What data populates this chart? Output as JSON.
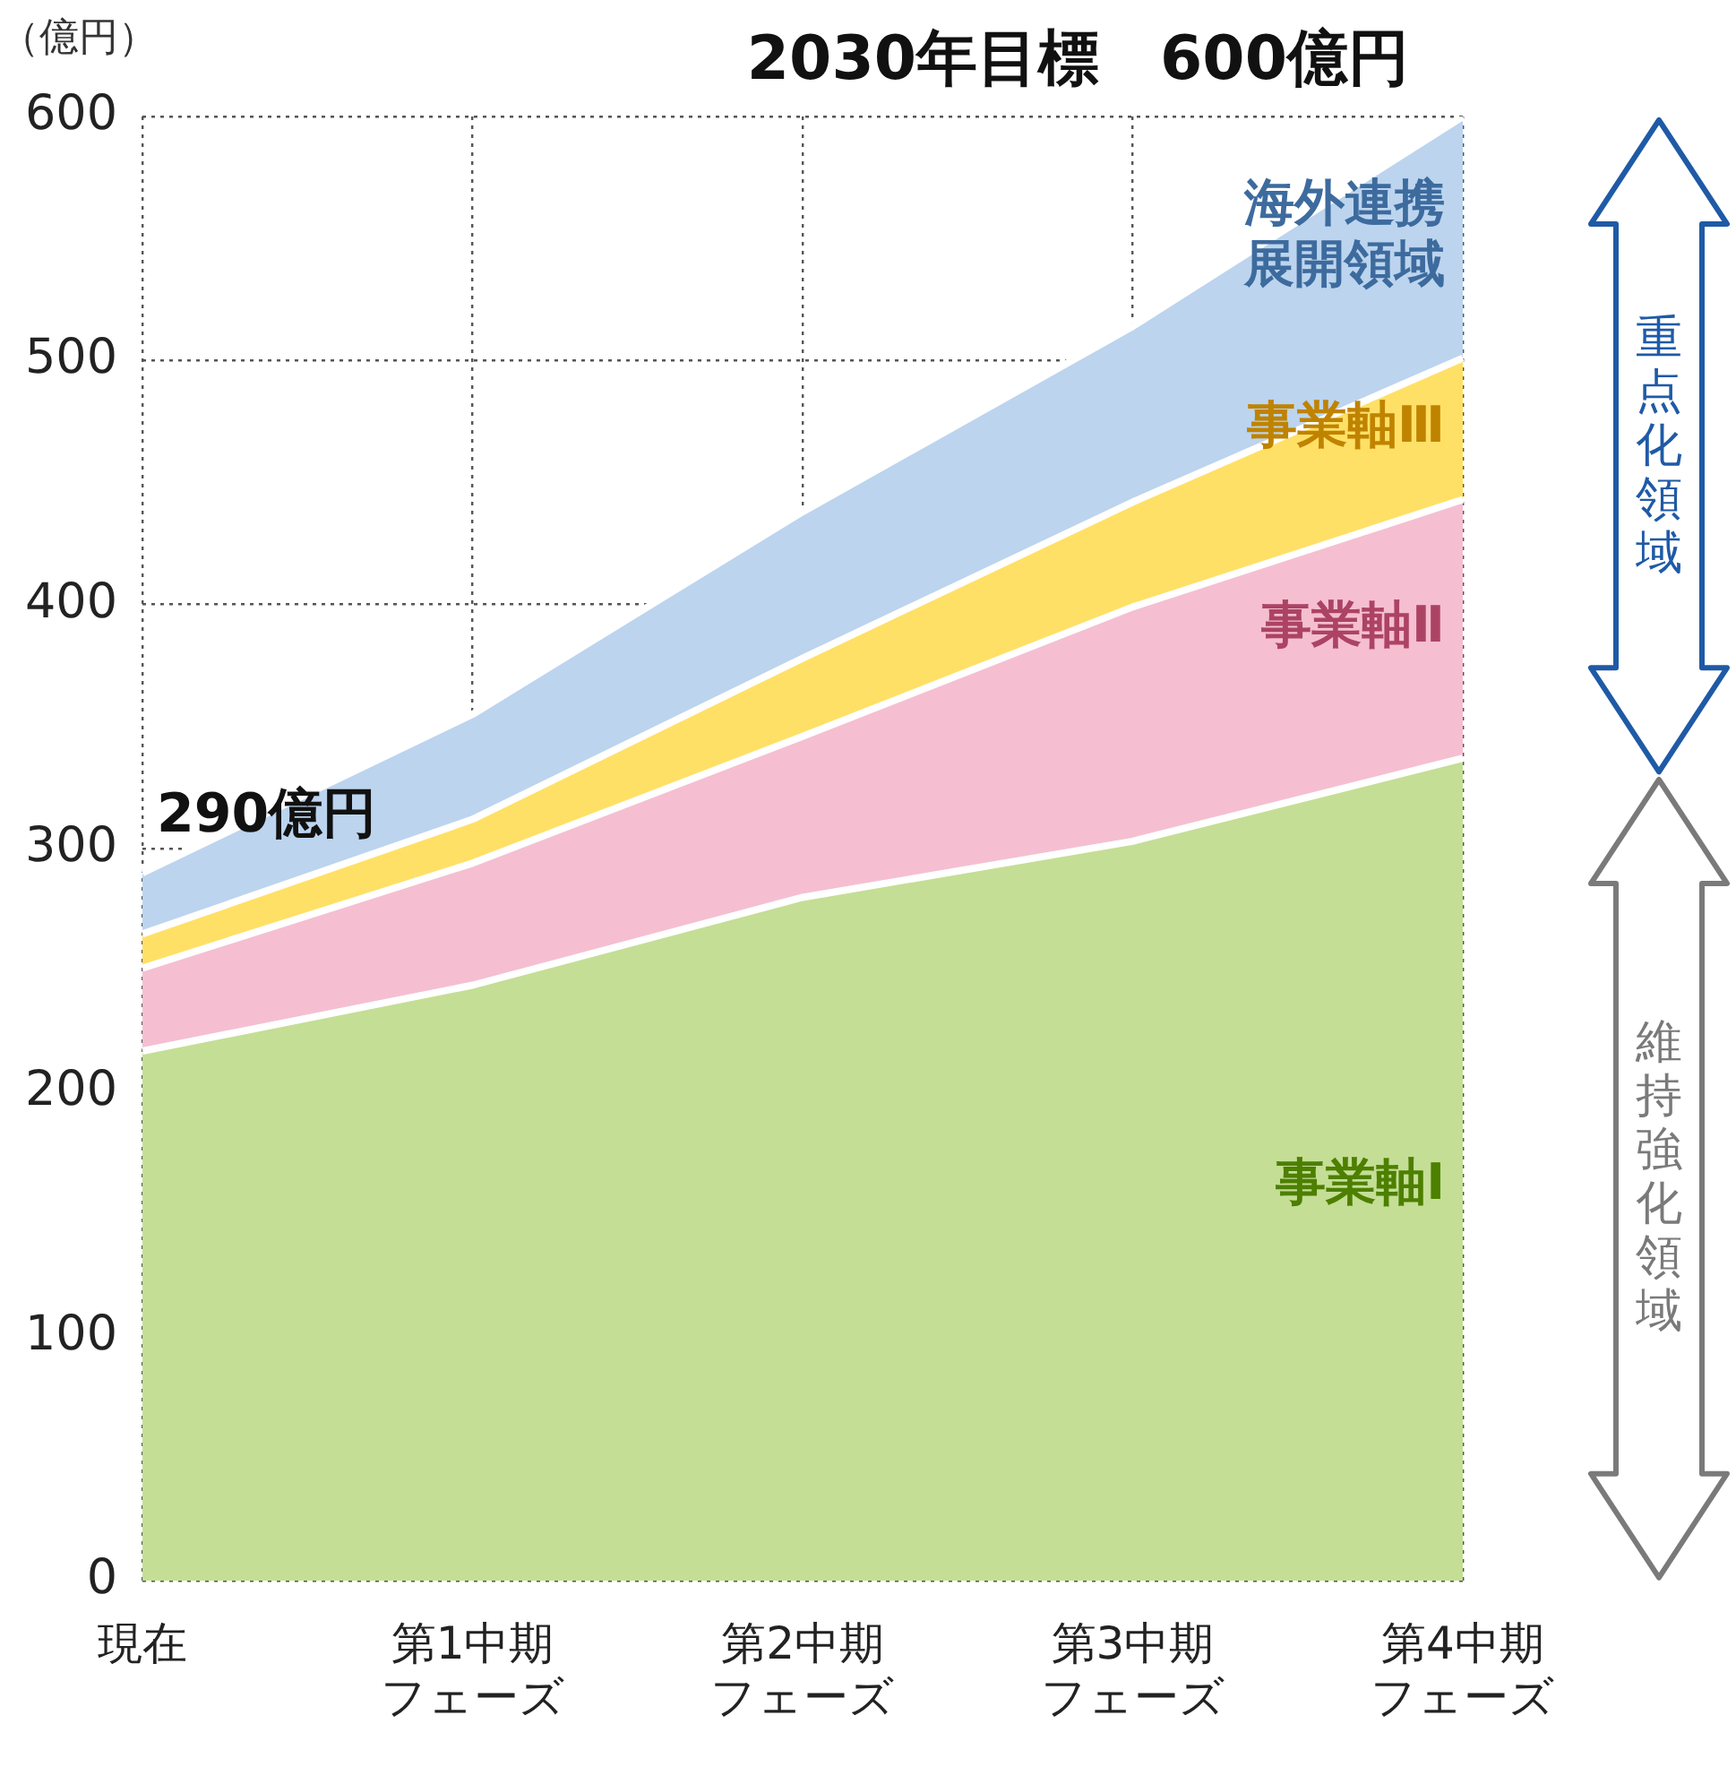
{
  "chart_data": {
    "type": "area",
    "title": "2030年目標　600億円",
    "ylabel": "（億円）",
    "categories": [
      "現在",
      "第1中期フェーズ",
      "第2中期フェーズ",
      "第3中期フェーズ",
      "第4中期フェーズ"
    ],
    "series": [
      {
        "name": "事業軸Ⅰ",
        "color": "#c4de95",
        "values": [
          217,
          244,
          280,
          303,
          337
        ]
      },
      {
        "name": "事業軸Ⅱ",
        "color": "#f5bfd1",
        "values": [
          34,
          50,
          66,
          96,
          106
        ]
      },
      {
        "name": "事業軸Ⅲ",
        "color": "#ffe066",
        "values": [
          14,
          18,
          32,
          43,
          58
        ]
      },
      {
        "name": "海外連携展開領域",
        "color": "#bcd4ee",
        "values": [
          25,
          43,
          60,
          72,
          99
        ]
      }
    ],
    "stacked": true,
    "ylim": [
      0,
      600
    ],
    "yticks": [
      0,
      100,
      200,
      300,
      400,
      500,
      600
    ],
    "grid": true,
    "legend": false,
    "marker": "none",
    "annotations": [
      {
        "text": "290億円",
        "x": "現在",
        "y": 290
      },
      "重点化領域",
      "維持強化領域"
    ]
  }
}
